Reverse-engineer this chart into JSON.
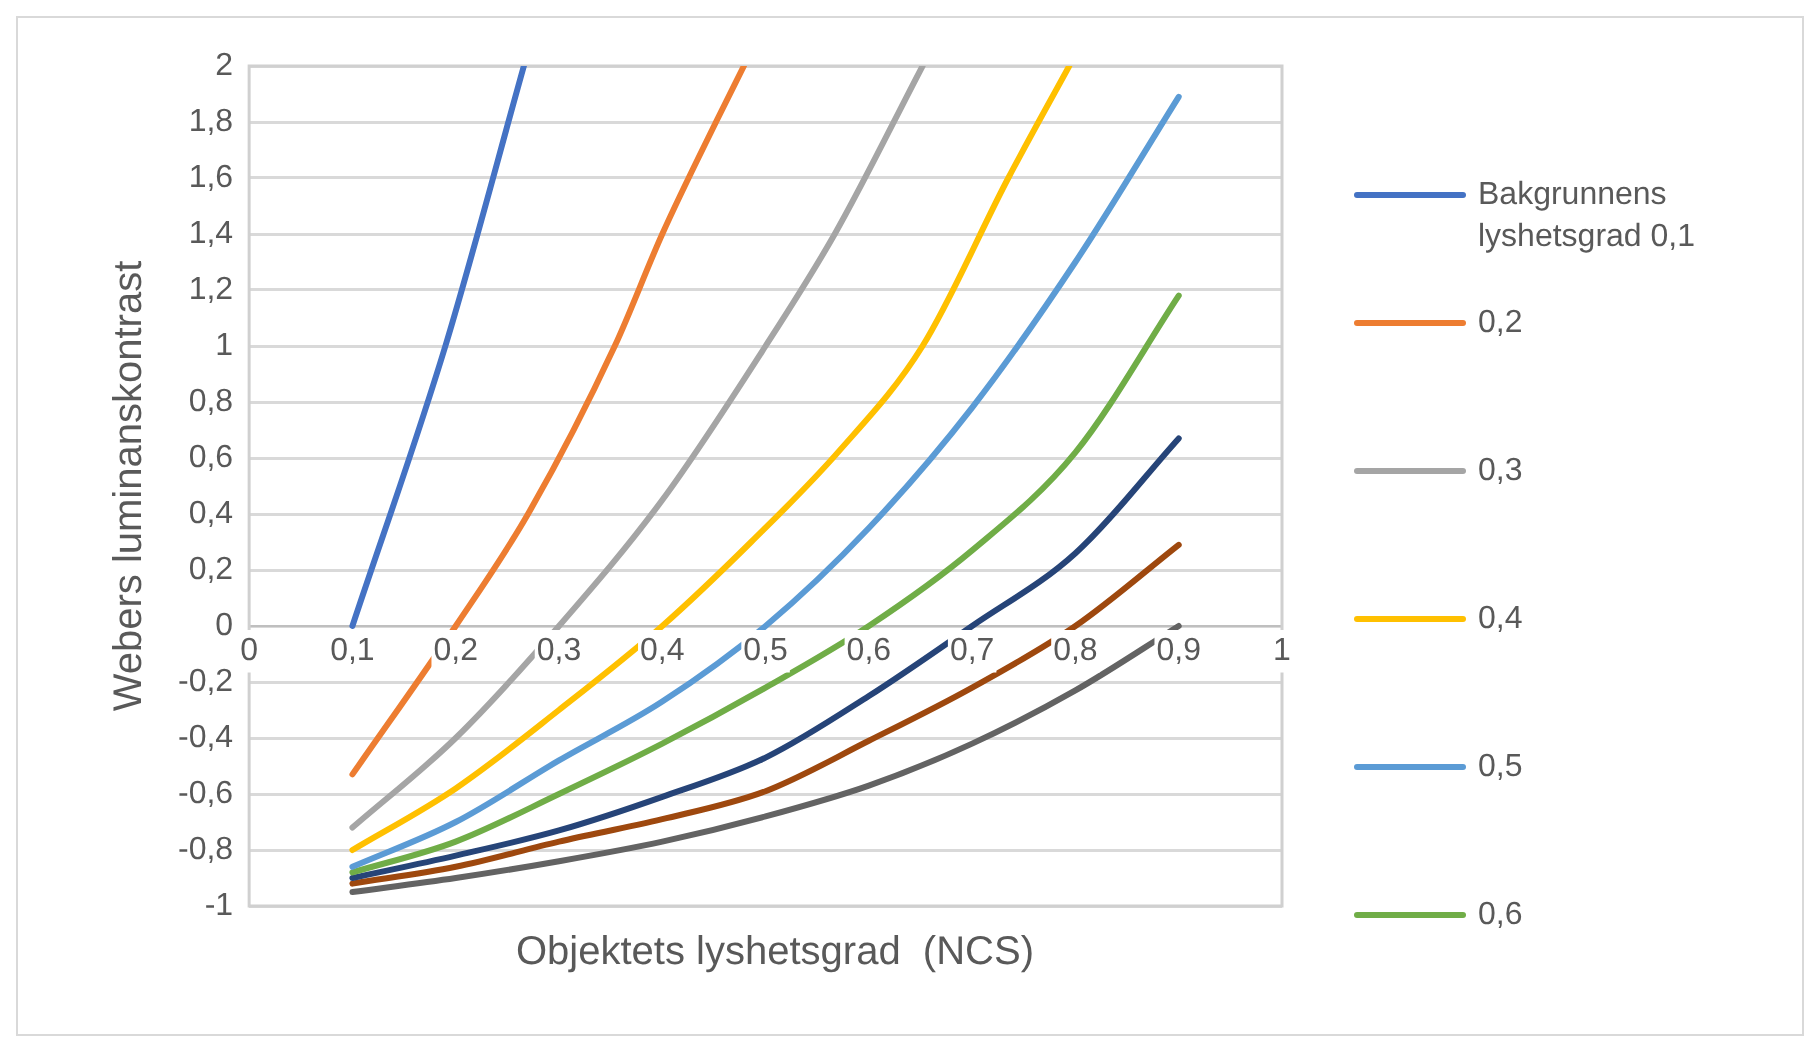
{
  "chart_data": {
    "type": "line",
    "xlabel": "Objektets lyshetsgrad  (NCS)",
    "ylabel": "Webers luminanskontrast",
    "xlim": [
      0,
      1
    ],
    "ylim": [
      -1,
      2
    ],
    "xticks": [
      0,
      {
        "value": 0.1,
        "label": "0,1"
      },
      {
        "value": 0.2,
        "label": "0,2"
      },
      {
        "value": 0.3,
        "label": "0,3"
      },
      {
        "value": 0.4,
        "label": "0,4"
      },
      {
        "value": 0.5,
        "label": "0,5"
      },
      {
        "value": 0.6,
        "label": "0,6"
      },
      {
        "value": 0.7,
        "label": "0,7"
      },
      {
        "value": 0.8,
        "label": "0,8"
      },
      {
        "value": 0.9,
        "label": "0,9"
      },
      1
    ],
    "yticks": [
      -1,
      {
        "value": -0.8,
        "label": "-0,8"
      },
      {
        "value": -0.6,
        "label": "-0,6"
      },
      {
        "value": -0.4,
        "label": "-0,4"
      },
      {
        "value": -0.2,
        "label": "-0,2"
      },
      0,
      {
        "value": 0.2,
        "label": "0,2"
      },
      {
        "value": 0.4,
        "label": "0,4"
      },
      {
        "value": 0.6,
        "label": "0,6"
      },
      {
        "value": 0.8,
        "label": "0,8"
      },
      1,
      {
        "value": 1.2,
        "label": "1,2"
      },
      {
        "value": 1.4,
        "label": "1,4"
      },
      {
        "value": 1.6,
        "label": "1,6"
      },
      {
        "value": 1.8,
        "label": "1,8"
      },
      2
    ],
    "grid": "y",
    "legend": "right",
    "marker": "none",
    "line_style": "solid",
    "series": [
      {
        "name": "Bakgrunnens lyshetsgrad 0,1",
        "color": "#4472c4",
        "x": [
          0.1,
          0.19,
          0.266
        ],
        "values": [
          0,
          1,
          2
        ]
      },
      {
        "name": "0,2",
        "color": "#ed7d31",
        "x": [
          0.1,
          0.2,
          0.27,
          0.354,
          0.4,
          0.452,
          0.479
        ],
        "values": [
          -0.53,
          0,
          0.4,
          1,
          1.4,
          1.8,
          2
        ]
      },
      {
        "name": "0,3",
        "color": "#a5a5a5",
        "x": [
          0.1,
          0.2,
          0.3,
          0.4,
          0.5,
          0.567,
          0.652
        ],
        "values": [
          -0.72,
          -0.4,
          0,
          0.45,
          1,
          1.4,
          2
        ]
      },
      {
        "name": "0,4",
        "color": "#ffc000",
        "x": [
          0.1,
          0.2,
          0.3,
          0.4,
          0.486,
          0.57,
          0.652,
          0.735,
          0.794
        ],
        "values": [
          -0.8,
          -0.58,
          -0.3,
          0,
          0.3,
          0.62,
          1,
          1.6,
          2
        ]
      },
      {
        "name": "0,5",
        "color": "#5b9bd5",
        "x": [
          0.1,
          0.2,
          0.3,
          0.4,
          0.5,
          0.6,
          0.7,
          0.8,
          0.9
        ],
        "values": [
          -0.86,
          -0.7,
          -0.48,
          -0.27,
          0,
          0.35,
          0.78,
          1.3,
          1.89
        ]
      },
      {
        "name": "0,6",
        "color": "#70ad47",
        "x": [
          0.1,
          0.2,
          0.3,
          0.4,
          0.5,
          0.6,
          0.7,
          0.8,
          0.9
        ],
        "values": [
          -0.88,
          -0.77,
          -0.6,
          -0.42,
          -0.22,
          0,
          0.27,
          0.62,
          1.18
        ]
      },
      {
        "color": "#264478",
        "x": [
          0.1,
          0.2,
          0.3,
          0.4,
          0.5,
          0.6,
          0.7,
          0.8,
          0.9
        ],
        "values": [
          -0.9,
          -0.82,
          -0.73,
          -0.61,
          -0.47,
          -0.25,
          0,
          0.26,
          0.67
        ]
      },
      {
        "color": "#9e480e",
        "x": [
          0.1,
          0.2,
          0.3,
          0.4,
          0.5,
          0.6,
          0.7,
          0.8,
          0.9
        ],
        "values": [
          -0.92,
          -0.86,
          -0.77,
          -0.69,
          -0.59,
          -0.41,
          -0.22,
          0,
          0.29
        ]
      },
      {
        "color": "#636363",
        "x": [
          0.1,
          0.2,
          0.3,
          0.4,
          0.5,
          0.6,
          0.7,
          0.8,
          0.9
        ],
        "values": [
          -0.95,
          -0.9,
          -0.84,
          -0.77,
          -0.68,
          -0.57,
          -0.42,
          -0.23,
          0
        ]
      }
    ]
  }
}
